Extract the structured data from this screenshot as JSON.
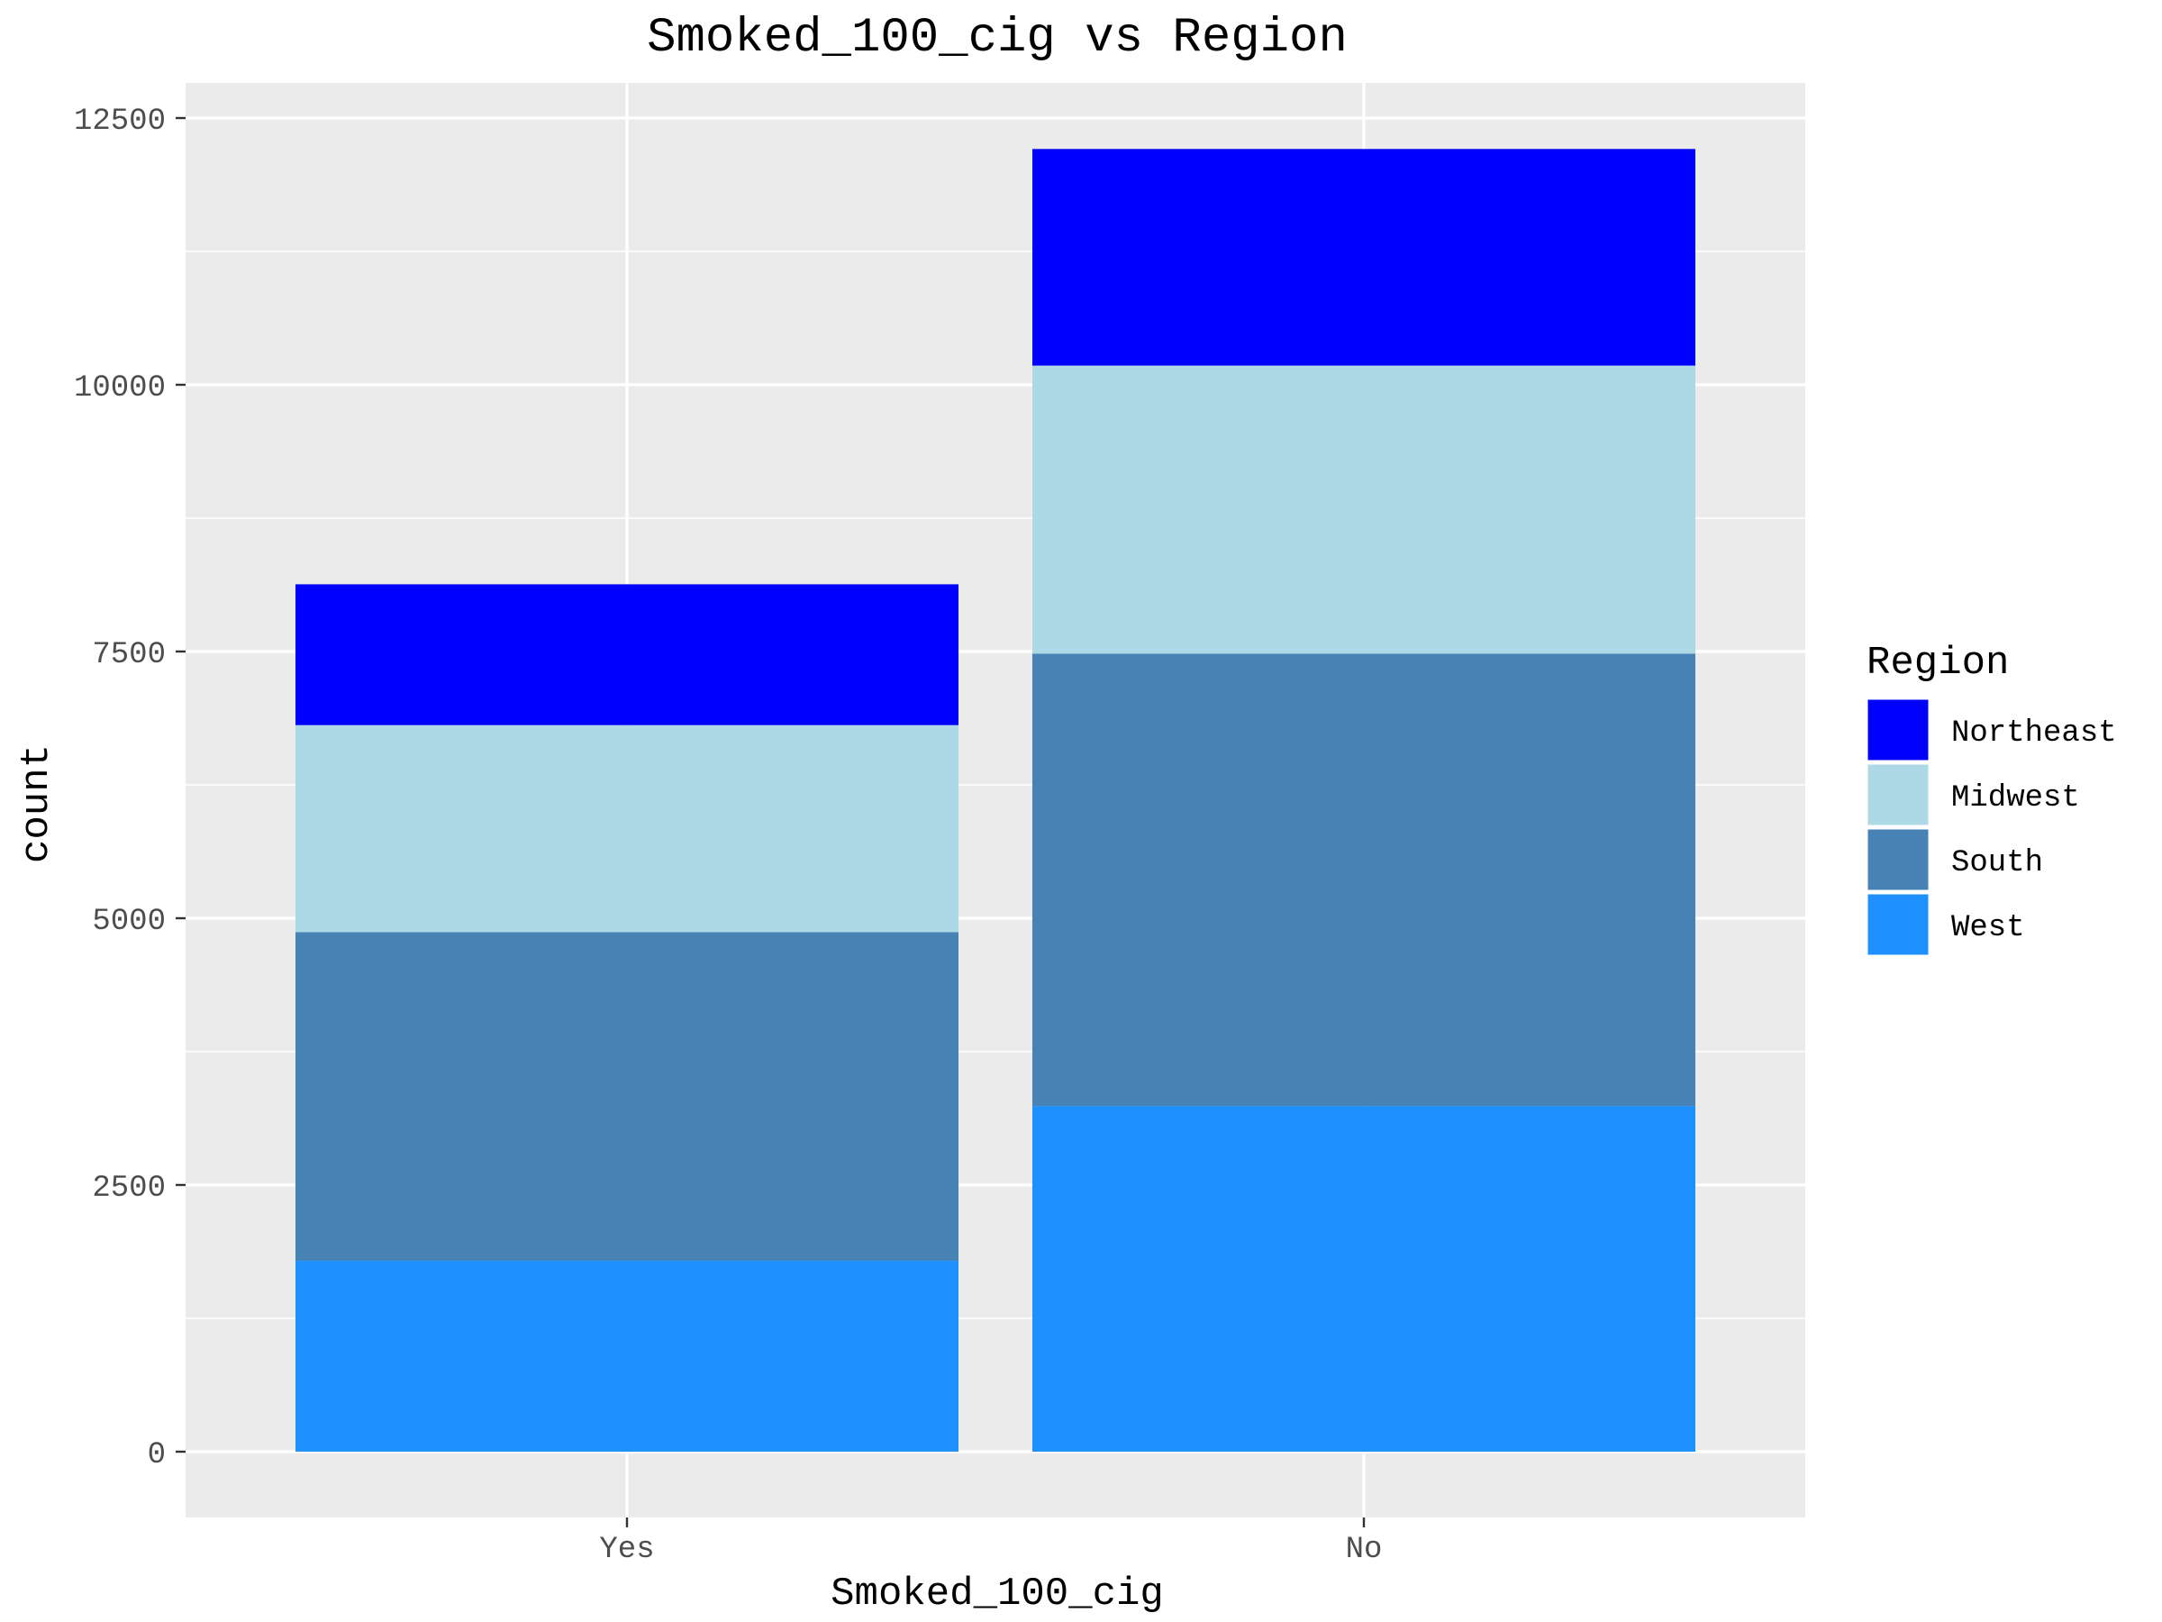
{
  "chart_data": {
    "type": "bar",
    "stacked": true,
    "title": "Smoked_100_cig vs Region",
    "xlabel": "Smoked_100_cig",
    "ylabel": "count",
    "categories": [
      "Yes",
      "No"
    ],
    "ylim": [
      0,
      13100
    ],
    "yticks": [
      0,
      2500,
      5000,
      7500,
      10000,
      12500
    ],
    "ytick_labels": [
      "0",
      "2500",
      "5000",
      "7500",
      "10000",
      "12500"
    ],
    "grid": true,
    "legend": {
      "title": "Region",
      "position": "right"
    },
    "series": [
      {
        "name": "West",
        "color": "#1e90ff",
        "values": [
          1790,
          3240
        ]
      },
      {
        "name": "South",
        "color": "#4682b4",
        "values": [
          3080,
          4240
        ]
      },
      {
        "name": "Midwest",
        "color": "#add8e6",
        "values": [
          1940,
          2700
        ]
      },
      {
        "name": "Northeast",
        "color": "#0000ff",
        "values": [
          1320,
          2030
        ]
      }
    ],
    "legend_order": [
      "Northeast",
      "Midwest",
      "South",
      "West"
    ]
  }
}
